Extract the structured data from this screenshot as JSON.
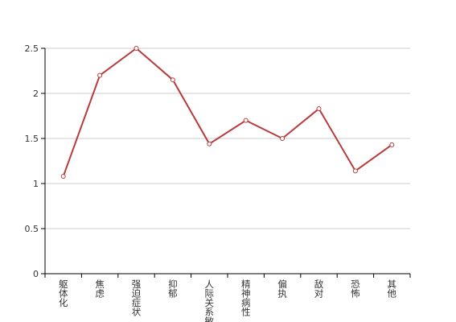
{
  "chart_data": {
    "type": "line",
    "categories": [
      "躯体化",
      "焦虑",
      "强迫症状",
      "抑郁",
      "人际关系敏感",
      "精神病性",
      "偏执",
      "敌对",
      "恐怖",
      "其他"
    ],
    "values": [
      1.08,
      2.2,
      2.5,
      2.15,
      1.44,
      1.7,
      1.5,
      1.83,
      1.14,
      1.43
    ],
    "color": "#b83a3a",
    "ylim": [
      0,
      2.5
    ],
    "yticks": [
      0,
      0.5,
      1,
      1.5,
      2,
      2.5
    ],
    "grid": true
  }
}
